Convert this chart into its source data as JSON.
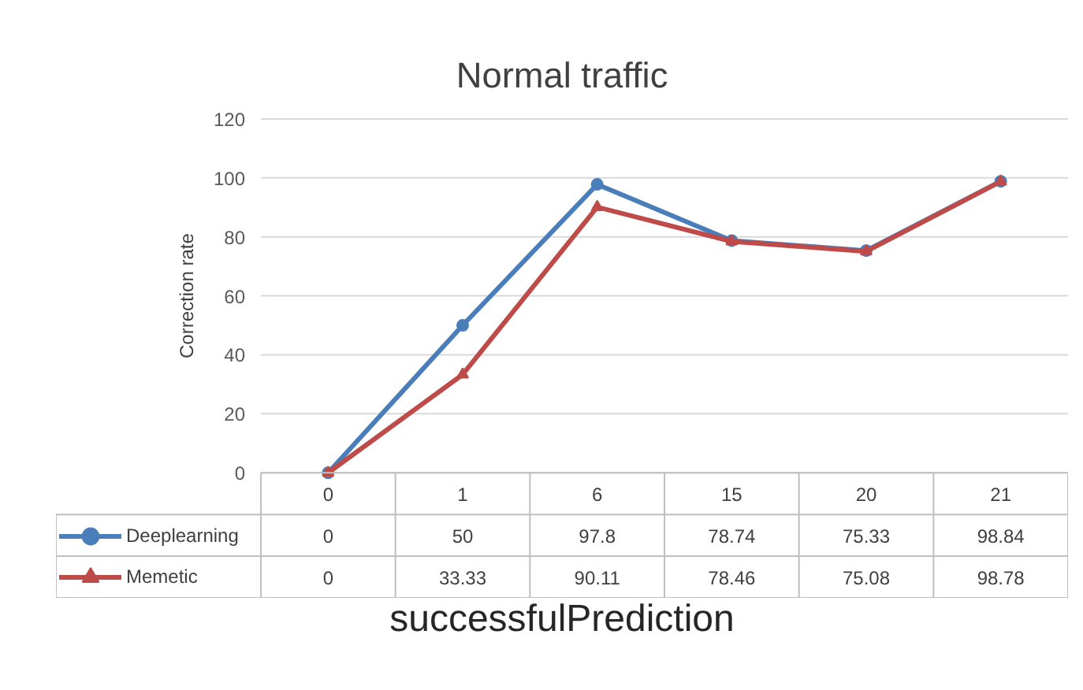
{
  "chart_data": {
    "type": "line",
    "title": "Normal traffic",
    "xlabel": "successfulPrediction",
    "ylabel": "Correction rate",
    "categories": [
      "0",
      "1",
      "6",
      "15",
      "20",
      "21"
    ],
    "series": [
      {
        "name": "Deeplearning",
        "color": "#4a7ebb",
        "marker": "circle",
        "values": [
          0,
          50,
          97.8,
          78.74,
          75.33,
          98.84
        ]
      },
      {
        "name": "Memetic",
        "color": "#be4b48",
        "marker": "triangle",
        "values": [
          0,
          33.33,
          90.11,
          78.46,
          75.08,
          98.78
        ]
      }
    ],
    "ylim": [
      0,
      120
    ],
    "yticks": [
      0,
      20,
      40,
      60,
      80,
      100,
      120
    ],
    "grid": "y",
    "legend": "bottom left",
    "data_labels": true,
    "line_style": "solid"
  }
}
